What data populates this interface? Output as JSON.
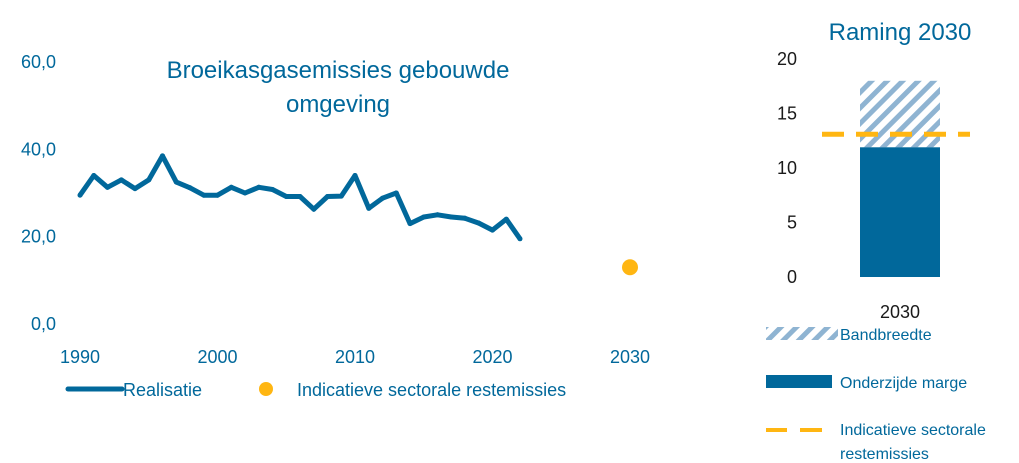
{
  "colors": {
    "primary": "#01689b",
    "accent": "#ffb612",
    "hatch": "#8fb4d2",
    "text": "#01689b",
    "tick_text": "#1a1a1a"
  },
  "chart_data": [
    {
      "type": "line",
      "title": "Broeikasgasemissies gebouwde omgeving",
      "title_lines": [
        "Broeikasgasemissies gebouwde",
        "omgeving"
      ],
      "xlim": [
        1990,
        2030
      ],
      "ylim": [
        0,
        60
      ],
      "x_ticks": [
        "1990",
        "2000",
        "2010",
        "2020",
        "2030"
      ],
      "y_ticks": [
        "0,0",
        "20,0",
        "40,0",
        "60,0"
      ],
      "grid": false,
      "legend_position": "bottom",
      "series": [
        {
          "name": "Realisatie",
          "style": "line",
          "x": [
            1990,
            1991,
            1992,
            1993,
            1994,
            1995,
            1996,
            1997,
            1998,
            1999,
            2000,
            2001,
            2002,
            2003,
            2004,
            2005,
            2006,
            2007,
            2008,
            2009,
            2010,
            2011,
            2012,
            2013,
            2014,
            2015,
            2016,
            2017,
            2018,
            2019,
            2020,
            2021,
            2022
          ],
          "y": [
            29.5,
            34.0,
            31.3,
            33.0,
            31.0,
            33.0,
            38.5,
            32.5,
            31.2,
            29.5,
            29.5,
            31.3,
            30.0,
            31.3,
            30.8,
            29.2,
            29.2,
            26.3,
            29.2,
            29.3,
            34.0,
            26.5,
            28.8,
            30.0,
            23.0,
            24.5,
            25.0,
            24.5,
            24.2,
            23.1,
            21.5,
            24.0,
            19.5
          ]
        },
        {
          "name": "Indicatieve sectorale restemissies",
          "style": "point",
          "x": [
            2030
          ],
          "y": [
            13.0
          ]
        }
      ]
    },
    {
      "type": "bar",
      "title": "Raming 2030",
      "categories": [
        "2030"
      ],
      "ylim": [
        0,
        20
      ],
      "y_ticks": [
        "0",
        "5",
        "10",
        "15",
        "20"
      ],
      "stack": {
        "onderzijde_marge": 11.9,
        "bandbreedte_top": 18.0
      },
      "reference_line": 13.1,
      "legend": [
        {
          "label": "Bandbreedte",
          "kind": "hatch"
        },
        {
          "label": "Onderzijde marge",
          "kind": "solid"
        },
        {
          "label_lines": [
            "Indicatieve sectorale",
            "restemissies"
          ],
          "kind": "dash"
        }
      ]
    }
  ]
}
